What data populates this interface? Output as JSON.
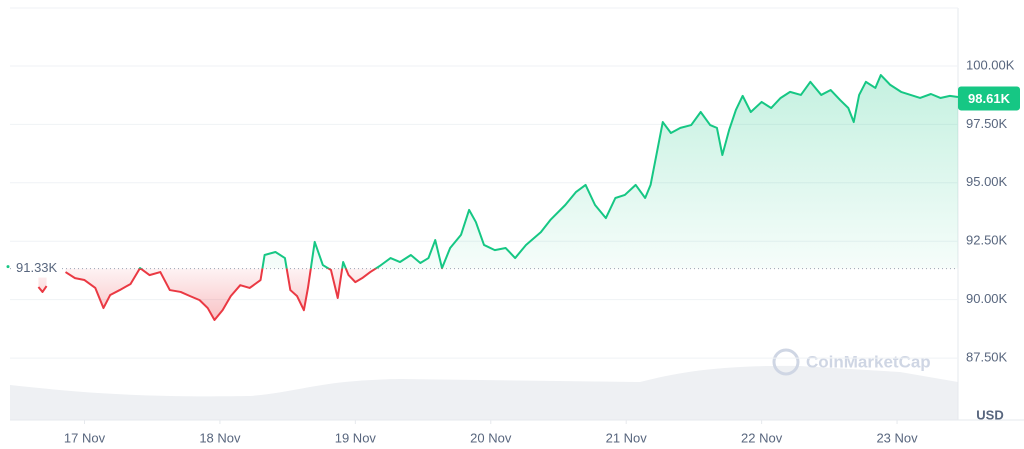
{
  "chart_data": {
    "type": "line",
    "x": [
      16.66,
      16.69,
      16.72,
      16.79,
      16.86,
      16.93,
      17.0,
      17.08,
      17.14,
      17.19,
      17.26,
      17.34,
      17.41,
      17.48,
      17.56,
      17.63,
      17.71,
      17.78,
      17.85,
      17.91,
      17.96,
      18.02,
      18.08,
      18.15,
      18.22,
      18.3,
      18.33,
      18.41,
      18.48,
      18.52,
      18.57,
      18.62,
      18.65,
      18.7,
      18.76,
      18.82,
      18.87,
      18.91,
      18.95,
      19.0,
      19.05,
      19.11,
      19.18,
      19.26,
      19.33,
      19.41,
      19.48,
      19.54,
      19.59,
      19.64,
      19.7,
      19.78,
      19.84,
      19.89,
      19.95,
      20.03,
      20.11,
      20.18,
      20.26,
      20.37,
      20.44,
      20.55,
      20.63,
      20.7,
      20.77,
      20.85,
      20.92,
      20.99,
      21.07,
      21.14,
      21.18,
      21.23,
      21.27,
      21.33,
      21.4,
      21.48,
      21.55,
      21.62,
      21.67,
      21.71,
      21.76,
      21.81,
      21.86,
      21.92,
      22.0,
      22.07,
      22.14,
      22.21,
      22.29,
      22.36,
      22.44,
      22.51,
      22.58,
      22.64,
      22.68,
      22.72,
      22.77,
      22.84,
      22.88,
      22.95,
      23.03,
      23.1,
      23.17,
      23.25,
      23.32,
      23.39,
      23.45
    ],
    "values": [
      90540,
      90330,
      90580,
      null,
      91180,
      90920,
      90840,
      90500,
      89640,
      90200,
      90410,
      90670,
      91350,
      91050,
      91180,
      90410,
      90330,
      90150,
      89980,
      89640,
      89130,
      89550,
      90150,
      90620,
      90500,
      90840,
      91910,
      92040,
      91780,
      90410,
      90150,
      89550,
      90500,
      92470,
      91480,
      91270,
      90070,
      91610,
      91050,
      90750,
      90920,
      91180,
      91440,
      91780,
      91610,
      91910,
      91570,
      91780,
      92550,
      91350,
      92210,
      92770,
      93840,
      93320,
      92340,
      92120,
      92210,
      91780,
      92340,
      92890,
      93410,
      94050,
      94610,
      94910,
      94050,
      93490,
      94350,
      94480,
      94910,
      94350,
      94910,
      96400,
      97600,
      97130,
      97350,
      97470,
      98030,
      97470,
      97350,
      96190,
      97260,
      98120,
      98720,
      98030,
      98460,
      98200,
      98630,
      98890,
      98760,
      99320,
      98760,
      98970,
      98540,
      98200,
      97600,
      98760,
      99320,
      99060,
      99610,
      99190,
      98890,
      98760,
      98630,
      98800,
      98630,
      98720,
      98670
    ],
    "xlim": [
      16.45,
      23.45
    ],
    "xticks": [
      {
        "value": 17,
        "label": "17 Nov"
      },
      {
        "value": 18,
        "label": "18 Nov"
      },
      {
        "value": 19,
        "label": "19 Nov"
      },
      {
        "value": 20,
        "label": "20 Nov"
      },
      {
        "value": 21,
        "label": "21 Nov"
      },
      {
        "value": 22,
        "label": "22 Nov"
      },
      {
        "value": 23,
        "label": "23 Nov"
      }
    ],
    "ylim": [
      84850,
      102480
    ],
    "yticks": [
      {
        "value": 87500,
        "label": "87.50K"
      },
      {
        "value": 90000,
        "label": "90.00K"
      },
      {
        "value": 92500,
        "label": "92.50K"
      },
      {
        "value": 95000,
        "label": "95.00K"
      },
      {
        "value": 97500,
        "label": "97.50K"
      },
      {
        "value": 100000,
        "label": "100.00K"
      }
    ],
    "y_axis_label": "USD",
    "baseline": {
      "value": 91330,
      "label": "91.33K"
    },
    "last_price": {
      "value": 98610,
      "label": "98.61K"
    },
    "up_color": "#16c784",
    "down_color": "#ea3943",
    "grid": true,
    "watermark": "CoinMarketCap"
  }
}
